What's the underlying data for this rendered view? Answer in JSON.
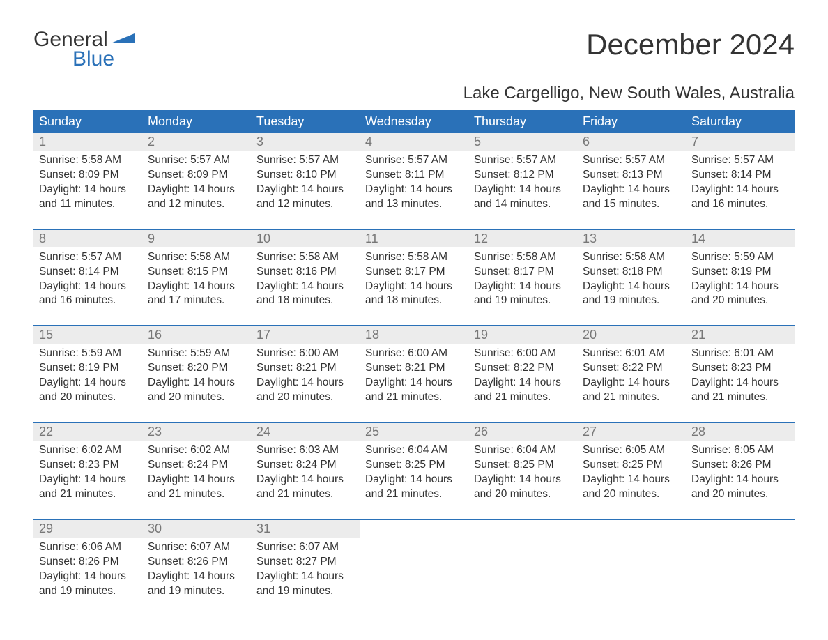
{
  "logo": {
    "word1": "General",
    "word2": "Blue",
    "brand_color": "#2a71b8"
  },
  "title": "December 2024",
  "subtitle": "Lake Cargelligo, New South Wales, Australia",
  "colors": {
    "header_bg": "#2a71b8",
    "header_fg": "#ffffff",
    "daynum_bg": "#ececec",
    "daynum_fg": "#777777",
    "text": "#333333",
    "page_bg": "#ffffff"
  },
  "typography": {
    "title_fontsize": 42,
    "subtitle_fontsize": 24,
    "header_fontsize": 18,
    "body_fontsize": 15.5,
    "font_family": "Arial"
  },
  "day_headers": [
    "Sunday",
    "Monday",
    "Tuesday",
    "Wednesday",
    "Thursday",
    "Friday",
    "Saturday"
  ],
  "weeks": [
    [
      {
        "n": "1",
        "sr": "Sunrise: 5:58 AM",
        "ss": "Sunset: 8:09 PM",
        "d1": "Daylight: 14 hours",
        "d2": "and 11 minutes."
      },
      {
        "n": "2",
        "sr": "Sunrise: 5:57 AM",
        "ss": "Sunset: 8:09 PM",
        "d1": "Daylight: 14 hours",
        "d2": "and 12 minutes."
      },
      {
        "n": "3",
        "sr": "Sunrise: 5:57 AM",
        "ss": "Sunset: 8:10 PM",
        "d1": "Daylight: 14 hours",
        "d2": "and 12 minutes."
      },
      {
        "n": "4",
        "sr": "Sunrise: 5:57 AM",
        "ss": "Sunset: 8:11 PM",
        "d1": "Daylight: 14 hours",
        "d2": "and 13 minutes."
      },
      {
        "n": "5",
        "sr": "Sunrise: 5:57 AM",
        "ss": "Sunset: 8:12 PM",
        "d1": "Daylight: 14 hours",
        "d2": "and 14 minutes."
      },
      {
        "n": "6",
        "sr": "Sunrise: 5:57 AM",
        "ss": "Sunset: 8:13 PM",
        "d1": "Daylight: 14 hours",
        "d2": "and 15 minutes."
      },
      {
        "n": "7",
        "sr": "Sunrise: 5:57 AM",
        "ss": "Sunset: 8:14 PM",
        "d1": "Daylight: 14 hours",
        "d2": "and 16 minutes."
      }
    ],
    [
      {
        "n": "8",
        "sr": "Sunrise: 5:57 AM",
        "ss": "Sunset: 8:14 PM",
        "d1": "Daylight: 14 hours",
        "d2": "and 16 minutes."
      },
      {
        "n": "9",
        "sr": "Sunrise: 5:58 AM",
        "ss": "Sunset: 8:15 PM",
        "d1": "Daylight: 14 hours",
        "d2": "and 17 minutes."
      },
      {
        "n": "10",
        "sr": "Sunrise: 5:58 AM",
        "ss": "Sunset: 8:16 PM",
        "d1": "Daylight: 14 hours",
        "d2": "and 18 minutes."
      },
      {
        "n": "11",
        "sr": "Sunrise: 5:58 AM",
        "ss": "Sunset: 8:17 PM",
        "d1": "Daylight: 14 hours",
        "d2": "and 18 minutes."
      },
      {
        "n": "12",
        "sr": "Sunrise: 5:58 AM",
        "ss": "Sunset: 8:17 PM",
        "d1": "Daylight: 14 hours",
        "d2": "and 19 minutes."
      },
      {
        "n": "13",
        "sr": "Sunrise: 5:58 AM",
        "ss": "Sunset: 8:18 PM",
        "d1": "Daylight: 14 hours",
        "d2": "and 19 minutes."
      },
      {
        "n": "14",
        "sr": "Sunrise: 5:59 AM",
        "ss": "Sunset: 8:19 PM",
        "d1": "Daylight: 14 hours",
        "d2": "and 20 minutes."
      }
    ],
    [
      {
        "n": "15",
        "sr": "Sunrise: 5:59 AM",
        "ss": "Sunset: 8:19 PM",
        "d1": "Daylight: 14 hours",
        "d2": "and 20 minutes."
      },
      {
        "n": "16",
        "sr": "Sunrise: 5:59 AM",
        "ss": "Sunset: 8:20 PM",
        "d1": "Daylight: 14 hours",
        "d2": "and 20 minutes."
      },
      {
        "n": "17",
        "sr": "Sunrise: 6:00 AM",
        "ss": "Sunset: 8:21 PM",
        "d1": "Daylight: 14 hours",
        "d2": "and 20 minutes."
      },
      {
        "n": "18",
        "sr": "Sunrise: 6:00 AM",
        "ss": "Sunset: 8:21 PM",
        "d1": "Daylight: 14 hours",
        "d2": "and 21 minutes."
      },
      {
        "n": "19",
        "sr": "Sunrise: 6:00 AM",
        "ss": "Sunset: 8:22 PM",
        "d1": "Daylight: 14 hours",
        "d2": "and 21 minutes."
      },
      {
        "n": "20",
        "sr": "Sunrise: 6:01 AM",
        "ss": "Sunset: 8:22 PM",
        "d1": "Daylight: 14 hours",
        "d2": "and 21 minutes."
      },
      {
        "n": "21",
        "sr": "Sunrise: 6:01 AM",
        "ss": "Sunset: 8:23 PM",
        "d1": "Daylight: 14 hours",
        "d2": "and 21 minutes."
      }
    ],
    [
      {
        "n": "22",
        "sr": "Sunrise: 6:02 AM",
        "ss": "Sunset: 8:23 PM",
        "d1": "Daylight: 14 hours",
        "d2": "and 21 minutes."
      },
      {
        "n": "23",
        "sr": "Sunrise: 6:02 AM",
        "ss": "Sunset: 8:24 PM",
        "d1": "Daylight: 14 hours",
        "d2": "and 21 minutes."
      },
      {
        "n": "24",
        "sr": "Sunrise: 6:03 AM",
        "ss": "Sunset: 8:24 PM",
        "d1": "Daylight: 14 hours",
        "d2": "and 21 minutes."
      },
      {
        "n": "25",
        "sr": "Sunrise: 6:04 AM",
        "ss": "Sunset: 8:25 PM",
        "d1": "Daylight: 14 hours",
        "d2": "and 21 minutes."
      },
      {
        "n": "26",
        "sr": "Sunrise: 6:04 AM",
        "ss": "Sunset: 8:25 PM",
        "d1": "Daylight: 14 hours",
        "d2": "and 20 minutes."
      },
      {
        "n": "27",
        "sr": "Sunrise: 6:05 AM",
        "ss": "Sunset: 8:25 PM",
        "d1": "Daylight: 14 hours",
        "d2": "and 20 minutes."
      },
      {
        "n": "28",
        "sr": "Sunrise: 6:05 AM",
        "ss": "Sunset: 8:26 PM",
        "d1": "Daylight: 14 hours",
        "d2": "and 20 minutes."
      }
    ],
    [
      {
        "n": "29",
        "sr": "Sunrise: 6:06 AM",
        "ss": "Sunset: 8:26 PM",
        "d1": "Daylight: 14 hours",
        "d2": "and 19 minutes."
      },
      {
        "n": "30",
        "sr": "Sunrise: 6:07 AM",
        "ss": "Sunset: 8:26 PM",
        "d1": "Daylight: 14 hours",
        "d2": "and 19 minutes."
      },
      {
        "n": "31",
        "sr": "Sunrise: 6:07 AM",
        "ss": "Sunset: 8:27 PM",
        "d1": "Daylight: 14 hours",
        "d2": "and 19 minutes."
      },
      null,
      null,
      null,
      null
    ]
  ]
}
